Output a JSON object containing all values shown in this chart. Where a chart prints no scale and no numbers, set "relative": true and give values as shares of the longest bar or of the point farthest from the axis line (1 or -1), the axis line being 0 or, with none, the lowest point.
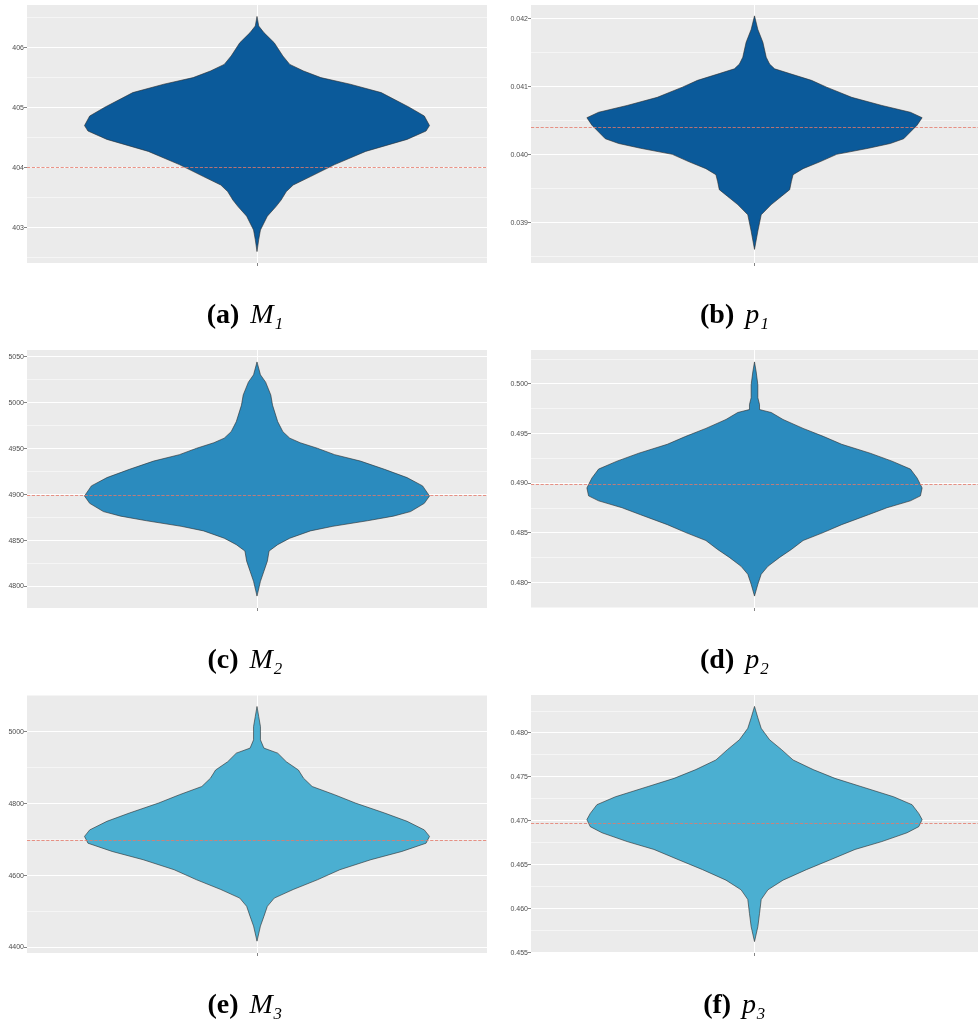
{
  "chart_data": [
    {
      "type": "area",
      "orientation": "horizontal",
      "relative": true,
      "color": "#0b5a9a",
      "x": [
        406.51,
        406.35,
        406.24,
        406.07,
        405.85,
        405.71,
        405.6,
        405.49,
        405.38,
        405.24,
        405.0,
        404.85,
        404.69,
        404.6,
        404.46,
        404.26,
        404.04,
        403.84,
        403.7,
        403.59,
        403.45,
        403.34,
        403.18,
        402.95,
        402.79,
        402.59
      ],
      "values": [
        0,
        0.01,
        0.04,
        0.1,
        0.15,
        0.19,
        0.27,
        0.37,
        0.54,
        0.72,
        0.88,
        0.97,
        1,
        0.98,
        0.87,
        0.63,
        0.45,
        0.31,
        0.21,
        0.17,
        0.14,
        0.11,
        0.06,
        0.02,
        0.01,
        0
      ],
      "ylim": [
        402.4,
        406.7
      ],
      "yticks": [
        403,
        404,
        405,
        406
      ],
      "ref_lines": [
        {
          "axis": "y",
          "value": 404,
          "color": "#e5786a",
          "line_style": "dashed"
        }
      ],
      "grid": true,
      "tick_labels": "y",
      "annotations": [
        "(a) M₁"
      ]
    },
    {
      "type": "area",
      "orientation": "horizontal",
      "relative": true,
      "color": "#0b5a9a",
      "x": [
        0.04204,
        0.04184,
        0.04165,
        0.04143,
        0.04133,
        0.04126,
        0.04119,
        0.04109,
        0.04099,
        0.04084,
        0.04072,
        0.04062,
        0.04054,
        0.04043,
        0.04033,
        0.04023,
        0.04016,
        0.04009,
        0.04,
        0.03989,
        0.03979,
        0.0397,
        0.0396,
        0.03948,
        0.03938,
        0.03926,
        0.03911,
        0.03887,
        0.0386
      ],
      "values": [
        0,
        0.02,
        0.05,
        0.07,
        0.09,
        0.12,
        0.21,
        0.34,
        0.43,
        0.58,
        0.76,
        0.93,
        1,
        0.97,
        0.93,
        0.89,
        0.81,
        0.68,
        0.49,
        0.39,
        0.29,
        0.23,
        0.22,
        0.21,
        0.16,
        0.1,
        0.04,
        0.02,
        0
      ],
      "ylim": [
        0.0384,
        0.0422
      ],
      "yticks": [
        0.039,
        {
          "value": 0.04,
          "label": "0.040"
        },
        0.041,
        0.042
      ],
      "ref_lines": [
        {
          "axis": "y",
          "value": 0.0404,
          "color": "#e5786a",
          "line_style": "dashed"
        }
      ],
      "grid": true,
      "tick_labels": "y",
      "annotations": [
        "(b) p₁"
      ]
    },
    {
      "type": "area",
      "orientation": "horizontal",
      "relative": true,
      "color": "#2b8bbe",
      "x": [
        5044,
        5030,
        5022,
        5008,
        4997,
        4979,
        4968,
        4961,
        4956,
        4950,
        4943,
        4936,
        4927,
        4918,
        4909,
        4898,
        4890,
        4881,
        4876,
        4871,
        4865,
        4860,
        4852,
        4845,
        4838,
        4827,
        4816,
        4805,
        4789
      ],
      "values": [
        0,
        0.02,
        0.05,
        0.08,
        0.09,
        0.12,
        0.15,
        0.19,
        0.25,
        0.35,
        0.45,
        0.6,
        0.74,
        0.87,
        0.96,
        1,
        0.97,
        0.89,
        0.79,
        0.64,
        0.44,
        0.31,
        0.19,
        0.12,
        0.07,
        0.06,
        0.04,
        0.02,
        0
      ],
      "ylim": [
        4776,
        5057
      ],
      "yticks": [
        4800,
        4850,
        4900,
        4950,
        5000,
        5050
      ],
      "ref_lines": [
        {
          "axis": "y",
          "value": 4899,
          "color": "#e5786a",
          "line_style": "dashed"
        }
      ],
      "grid": true,
      "tick_labels": "y",
      "annotations": [
        "(c) M₂"
      ]
    },
    {
      "type": "area",
      "orientation": "horizontal",
      "relative": true,
      "color": "#2b8bbe",
      "x": [
        0.5022,
        0.5012,
        0.4999,
        0.4986,
        0.4979,
        0.4974,
        0.4971,
        0.4964,
        0.4955,
        0.4947,
        0.4939,
        0.493,
        0.4922,
        0.4914,
        0.4905,
        0.4895,
        0.4887,
        0.4882,
        0.4875,
        0.4868,
        0.4858,
        0.485,
        0.4842,
        0.4833,
        0.4825,
        0.4816,
        0.4808,
        0.4798,
        0.4786
      ],
      "values": [
        0,
        0.01,
        0.02,
        0.02,
        0.03,
        0.03,
        0.1,
        0.17,
        0.29,
        0.41,
        0.52,
        0.69,
        0.82,
        0.93,
        0.97,
        1,
        0.99,
        0.93,
        0.79,
        0.68,
        0.52,
        0.41,
        0.29,
        0.22,
        0.15,
        0.08,
        0.04,
        0.02,
        0
      ],
      "ylim": [
        0.4774,
        0.5034
      ],
      "yticks": [
        {
          "value": 0.48,
          "label": "0.480"
        },
        0.485,
        {
          "value": 0.49,
          "label": "0.490"
        },
        0.495,
        {
          "value": 0.5,
          "label": "0.500"
        }
      ],
      "ref_lines": [
        {
          "axis": "y",
          "value": 0.4899,
          "color": "#e5786a",
          "line_style": "dashed"
        }
      ],
      "grid": true,
      "tick_labels": "y",
      "annotations": [
        "(d) p₂"
      ]
    },
    {
      "type": "area",
      "orientation": "horizontal",
      "relative": true,
      "color": "#4bafd1",
      "x": [
        5070,
        5042,
        5014,
        4977,
        4954,
        4940,
        4916,
        4893,
        4870,
        4847,
        4824,
        4801,
        4773,
        4750,
        4726,
        4708,
        4689,
        4666,
        4643,
        4615,
        4587,
        4560,
        4536,
        4513,
        4485,
        4458,
        4416
      ],
      "values": [
        0,
        0.01,
        0.02,
        0.02,
        0.04,
        0.12,
        0.17,
        0.24,
        0.27,
        0.32,
        0.45,
        0.57,
        0.74,
        0.87,
        0.97,
        1,
        0.98,
        0.84,
        0.66,
        0.48,
        0.35,
        0.21,
        0.1,
        0.06,
        0.04,
        0.02,
        0
      ],
      "ylim": [
        4383,
        5102
      ],
      "yticks": [
        4400,
        4600,
        4800,
        5000
      ],
      "ref_lines": [
        {
          "axis": "y",
          "value": 4698,
          "color": "#e5786a",
          "line_style": "dashed"
        }
      ],
      "grid": true,
      "tick_labels": "y",
      "annotations": [
        "(e) M₃"
      ]
    },
    {
      "type": "area",
      "orientation": "horizontal",
      "relative": true,
      "color": "#4bafd1",
      "x": [
        0.483,
        0.4817,
        0.4805,
        0.4792,
        0.4781,
        0.4769,
        0.4758,
        0.4748,
        0.4739,
        0.4727,
        0.4718,
        0.4708,
        0.4701,
        0.4693,
        0.4686,
        0.4676,
        0.4667,
        0.4655,
        0.4644,
        0.4632,
        0.4621,
        0.461,
        0.4594,
        0.4579,
        0.4562
      ],
      "values": [
        0,
        0.02,
        0.04,
        0.09,
        0.16,
        0.23,
        0.35,
        0.48,
        0.63,
        0.83,
        0.94,
        0.98,
        1,
        0.98,
        0.91,
        0.76,
        0.6,
        0.45,
        0.31,
        0.17,
        0.08,
        0.04,
        0.03,
        0.02,
        0
      ],
      "ylim": [
        0.4549,
        0.4843
      ],
      "yticks": [
        0.455,
        {
          "value": 0.46,
          "label": "0.460"
        },
        0.465,
        {
          "value": 0.47,
          "label": "0.470"
        },
        0.475,
        {
          "value": 0.48,
          "label": "0.480"
        }
      ],
      "ref_lines": [
        {
          "axis": "y",
          "value": 0.4697,
          "color": "#e5786a",
          "line_style": "dashed"
        }
      ],
      "grid": true,
      "tick_labels": "y",
      "annotations": [
        "(f) p₃"
      ]
    }
  ]
}
